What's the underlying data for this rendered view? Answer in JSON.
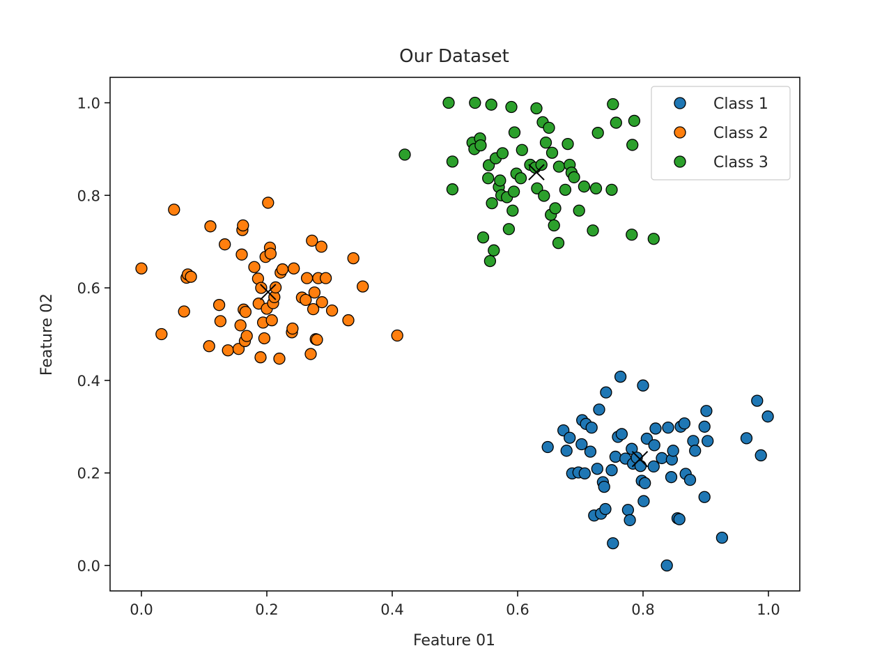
{
  "chart_data": {
    "type": "scatter",
    "title": "Our Dataset",
    "xlabel": "Feature 01",
    "ylabel": "Feature 02",
    "xlim": [
      -0.05,
      1.05
    ],
    "ylim": [
      -0.055,
      1.055
    ],
    "xticks": [
      0.0,
      0.2,
      0.4,
      0.6,
      0.8,
      1.0
    ],
    "yticks": [
      0.0,
      0.2,
      0.4,
      0.6,
      0.8,
      1.0
    ],
    "xtick_labels": [
      "0.0",
      "0.2",
      "0.4",
      "0.6",
      "0.8",
      "1.0"
    ],
    "ytick_labels": [
      "0.0",
      "0.2",
      "0.4",
      "0.6",
      "0.8",
      "1.0"
    ],
    "grid": false,
    "legend_position": "top-right",
    "series": [
      {
        "name": "Class 1",
        "color": "#1f77b4",
        "points": [
          [
            0.648,
            0.256
          ],
          [
            0.673,
            0.292
          ],
          [
            0.683,
            0.276
          ],
          [
            0.678,
            0.248
          ],
          [
            0.687,
            0.199
          ],
          [
            0.697,
            0.201
          ],
          [
            0.702,
            0.262
          ],
          [
            0.707,
            0.199
          ],
          [
            0.703,
            0.314
          ],
          [
            0.709,
            0.306
          ],
          [
            0.716,
            0.246
          ],
          [
            0.718,
            0.298
          ],
          [
            0.722,
            0.108
          ],
          [
            0.727,
            0.209
          ],
          [
            0.73,
            0.337
          ],
          [
            0.733,
            0.112
          ],
          [
            0.736,
            0.18
          ],
          [
            0.738,
            0.17
          ],
          [
            0.74,
            0.122
          ],
          [
            0.741,
            0.374
          ],
          [
            0.75,
            0.206
          ],
          [
            0.752,
            0.048
          ],
          [
            0.756,
            0.235
          ],
          [
            0.76,
            0.278
          ],
          [
            0.764,
            0.408
          ],
          [
            0.766,
            0.284
          ],
          [
            0.772,
            0.231
          ],
          [
            0.776,
            0.12
          ],
          [
            0.779,
            0.098
          ],
          [
            0.782,
            0.252
          ],
          [
            0.784,
            0.22
          ],
          [
            0.79,
            0.233
          ],
          [
            0.796,
            0.215
          ],
          [
            0.798,
            0.183
          ],
          [
            0.8,
            0.389
          ],
          [
            0.801,
            0.139
          ],
          [
            0.803,
            0.178
          ],
          [
            0.806,
            0.274
          ],
          [
            0.817,
            0.214
          ],
          [
            0.818,
            0.26
          ],
          [
            0.82,
            0.296
          ],
          [
            0.83,
            0.232
          ],
          [
            0.838,
            0.0
          ],
          [
            0.84,
            0.298
          ],
          [
            0.845,
            0.191
          ],
          [
            0.846,
            0.229
          ],
          [
            0.848,
            0.248
          ],
          [
            0.855,
            0.102
          ],
          [
            0.858,
            0.1
          ],
          [
            0.86,
            0.3
          ],
          [
            0.866,
            0.307
          ],
          [
            0.868,
            0.198
          ],
          [
            0.875,
            0.185
          ],
          [
            0.88,
            0.269
          ],
          [
            0.883,
            0.248
          ],
          [
            0.898,
            0.3
          ],
          [
            0.898,
            0.148
          ],
          [
            0.901,
            0.334
          ],
          [
            0.903,
            0.269
          ],
          [
            0.926,
            0.06
          ],
          [
            0.965,
            0.275
          ],
          [
            0.982,
            0.356
          ],
          [
            0.988,
            0.238
          ],
          [
            0.999,
            0.322
          ]
        ]
      },
      {
        "name": "Class 2",
        "color": "#ff7f0e",
        "points": [
          [
            0.0,
            0.642
          ],
          [
            0.032,
            0.5
          ],
          [
            0.052,
            0.769
          ],
          [
            0.068,
            0.549
          ],
          [
            0.072,
            0.622
          ],
          [
            0.074,
            0.629
          ],
          [
            0.079,
            0.624
          ],
          [
            0.108,
            0.474
          ],
          [
            0.11,
            0.733
          ],
          [
            0.124,
            0.563
          ],
          [
            0.126,
            0.528
          ],
          [
            0.133,
            0.694
          ],
          [
            0.138,
            0.465
          ],
          [
            0.155,
            0.468
          ],
          [
            0.158,
            0.519
          ],
          [
            0.16,
            0.672
          ],
          [
            0.161,
            0.725
          ],
          [
            0.162,
            0.735
          ],
          [
            0.163,
            0.553
          ],
          [
            0.165,
            0.485
          ],
          [
            0.166,
            0.548
          ],
          [
            0.168,
            0.496
          ],
          [
            0.18,
            0.645
          ],
          [
            0.186,
            0.62
          ],
          [
            0.187,
            0.566
          ],
          [
            0.19,
            0.45
          ],
          [
            0.191,
            0.6
          ],
          [
            0.194,
            0.525
          ],
          [
            0.196,
            0.491
          ],
          [
            0.198,
            0.667
          ],
          [
            0.2,
            0.555
          ],
          [
            0.202,
            0.784
          ],
          [
            0.205,
            0.687
          ],
          [
            0.206,
            0.674
          ],
          [
            0.208,
            0.53
          ],
          [
            0.21,
            0.567
          ],
          [
            0.212,
            0.58
          ],
          [
            0.214,
            0.601
          ],
          [
            0.22,
            0.447
          ],
          [
            0.222,
            0.633
          ],
          [
            0.225,
            0.64
          ],
          [
            0.24,
            0.504
          ],
          [
            0.241,
            0.512
          ],
          [
            0.243,
            0.642
          ],
          [
            0.256,
            0.579
          ],
          [
            0.262,
            0.574
          ],
          [
            0.264,
            0.621
          ],
          [
            0.27,
            0.457
          ],
          [
            0.272,
            0.702
          ],
          [
            0.274,
            0.554
          ],
          [
            0.276,
            0.59
          ],
          [
            0.278,
            0.489
          ],
          [
            0.28,
            0.488
          ],
          [
            0.282,
            0.621
          ],
          [
            0.287,
            0.689
          ],
          [
            0.288,
            0.569
          ],
          [
            0.294,
            0.621
          ],
          [
            0.304,
            0.551
          ],
          [
            0.33,
            0.53
          ],
          [
            0.338,
            0.664
          ],
          [
            0.353,
            0.603
          ],
          [
            0.408,
            0.497
          ]
        ]
      },
      {
        "name": "Class 3",
        "color": "#2ca02c",
        "points": [
          [
            0.42,
            0.888
          ],
          [
            0.49,
            1.0
          ],
          [
            0.496,
            0.873
          ],
          [
            0.496,
            0.813
          ],
          [
            0.528,
            0.914
          ],
          [
            0.531,
            0.9
          ],
          [
            0.532,
            1.0
          ],
          [
            0.54,
            0.923
          ],
          [
            0.541,
            0.908
          ],
          [
            0.545,
            0.709
          ],
          [
            0.553,
            0.837
          ],
          [
            0.554,
            0.865
          ],
          [
            0.556,
            0.658
          ],
          [
            0.558,
            0.996
          ],
          [
            0.559,
            0.783
          ],
          [
            0.562,
            0.681
          ],
          [
            0.565,
            0.88
          ],
          [
            0.57,
            0.818
          ],
          [
            0.572,
            0.832
          ],
          [
            0.574,
            0.8
          ],
          [
            0.576,
            0.891
          ],
          [
            0.583,
            0.796
          ],
          [
            0.586,
            0.727
          ],
          [
            0.59,
            0.991
          ],
          [
            0.592,
            0.767
          ],
          [
            0.594,
            0.808
          ],
          [
            0.595,
            0.936
          ],
          [
            0.598,
            0.847
          ],
          [
            0.605,
            0.837
          ],
          [
            0.607,
            0.898
          ],
          [
            0.62,
            0.866
          ],
          [
            0.628,
            0.86
          ],
          [
            0.63,
            0.988
          ],
          [
            0.631,
            0.815
          ],
          [
            0.638,
            0.866
          ],
          [
            0.64,
            0.958
          ],
          [
            0.642,
            0.799
          ],
          [
            0.645,
            0.914
          ],
          [
            0.65,
            0.946
          ],
          [
            0.653,
            0.758
          ],
          [
            0.655,
            0.892
          ],
          [
            0.658,
            0.735
          ],
          [
            0.66,
            0.772
          ],
          [
            0.665,
            0.697
          ],
          [
            0.666,
            0.862
          ],
          [
            0.676,
            0.812
          ],
          [
            0.68,
            0.911
          ],
          [
            0.683,
            0.866
          ],
          [
            0.686,
            0.849
          ],
          [
            0.69,
            0.839
          ],
          [
            0.698,
            0.767
          ],
          [
            0.706,
            0.819
          ],
          [
            0.72,
            0.724
          ],
          [
            0.725,
            0.815
          ],
          [
            0.728,
            0.935
          ],
          [
            0.75,
            0.812
          ],
          [
            0.752,
            0.997
          ],
          [
            0.757,
            0.957
          ],
          [
            0.782,
            0.715
          ],
          [
            0.783,
            0.909
          ],
          [
            0.786,
            0.961
          ],
          [
            0.817,
            0.706
          ]
        ]
      }
    ],
    "centroids": [
      {
        "class": "Class 1",
        "x": 0.795,
        "y": 0.23
      },
      {
        "class": "Class 2",
        "x": 0.202,
        "y": 0.591
      },
      {
        "class": "Class 3",
        "x": 0.63,
        "y": 0.85
      }
    ]
  }
}
